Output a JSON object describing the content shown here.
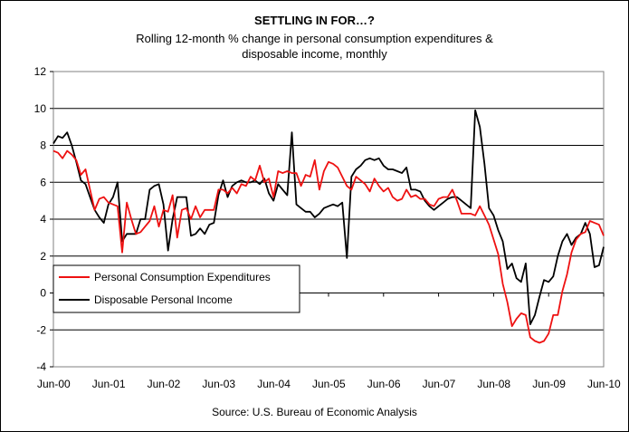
{
  "chart_data": {
    "type": "line",
    "title": "SETTLING IN FOR…?",
    "subtitle_lines": [
      "Rolling 12-month % change in personal consumption expenditures &",
      "disposable income, monthly"
    ],
    "source": "Source: U.S. Bureau of Economic Analysis",
    "xlabel": "",
    "ylabel": "",
    "ylim": [
      -4,
      12
    ],
    "yticks": [
      "12",
      "10",
      "8",
      "6",
      "4",
      "2",
      "0",
      "-2",
      "-4"
    ],
    "xlim": [
      "2000-06",
      "2010-06"
    ],
    "xtick_labels": [
      "Jun-00",
      "Jun-01",
      "Jun-02",
      "Jun-03",
      "Jun-04",
      "Jun-05",
      "Jun-06",
      "Jun-07",
      "Jun-08",
      "Jun-09",
      "Jun-10"
    ],
    "grid": "horizontal",
    "legend_position": "left-middle",
    "series": [
      {
        "name": "Personal Consumption Expenditures",
        "color": "#ee1111",
        "points": [
          [
            "2000-06",
            7.7
          ],
          [
            "2000-07",
            7.6
          ],
          [
            "2000-08",
            7.3
          ],
          [
            "2000-09",
            7.7
          ],
          [
            "2000-10",
            7.5
          ],
          [
            "2000-11",
            7.2
          ],
          [
            "2000-12",
            6.4
          ],
          [
            "2001-01",
            6.7
          ],
          [
            "2001-02",
            5.6
          ],
          [
            "2001-03",
            4.5
          ],
          [
            "2001-04",
            5.1
          ],
          [
            "2001-05",
            5.2
          ],
          [
            "2001-06",
            4.9
          ],
          [
            "2001-07",
            4.8
          ],
          [
            "2001-08",
            4.7
          ],
          [
            "2001-09",
            2.2
          ],
          [
            "2001-10",
            4.9
          ],
          [
            "2001-11",
            4.0
          ],
          [
            "2001-12",
            3.2
          ],
          [
            "2002-01",
            3.3
          ],
          [
            "2002-02",
            3.6
          ],
          [
            "2002-03",
            3.9
          ],
          [
            "2002-04",
            4.7
          ],
          [
            "2002-05",
            3.6
          ],
          [
            "2002-06",
            4.5
          ],
          [
            "2002-07",
            4.4
          ],
          [
            "2002-08",
            5.3
          ],
          [
            "2002-09",
            3.0
          ],
          [
            "2002-10",
            4.5
          ],
          [
            "2002-11",
            4.6
          ],
          [
            "2002-12",
            4.0
          ],
          [
            "2003-01",
            4.7
          ],
          [
            "2003-02",
            4.1
          ],
          [
            "2003-03",
            4.5
          ],
          [
            "2003-04",
            4.5
          ],
          [
            "2003-05",
            4.5
          ],
          [
            "2003-06",
            5.6
          ],
          [
            "2003-07",
            5.6
          ],
          [
            "2003-08",
            5.4
          ],
          [
            "2003-09",
            5.7
          ],
          [
            "2003-10",
            5.4
          ],
          [
            "2003-11",
            5.9
          ],
          [
            "2003-12",
            5.8
          ],
          [
            "2004-01",
            6.3
          ],
          [
            "2004-02",
            6.1
          ],
          [
            "2004-03",
            6.9
          ],
          [
            "2004-04",
            6.0
          ],
          [
            "2004-05",
            6.2
          ],
          [
            "2004-06",
            5.2
          ],
          [
            "2004-07",
            6.6
          ],
          [
            "2004-08",
            6.5
          ],
          [
            "2004-09",
            6.6
          ],
          [
            "2004-10",
            6.5
          ],
          [
            "2004-11",
            6.5
          ],
          [
            "2004-12",
            5.8
          ],
          [
            "2005-01",
            6.4
          ],
          [
            "2005-02",
            6.3
          ],
          [
            "2005-03",
            7.2
          ],
          [
            "2005-04",
            5.6
          ],
          [
            "2005-05",
            6.6
          ],
          [
            "2005-06",
            7.1
          ],
          [
            "2005-07",
            7.0
          ],
          [
            "2005-08",
            6.8
          ],
          [
            "2005-09",
            6.3
          ],
          [
            "2005-10",
            5.8
          ],
          [
            "2005-11",
            5.6
          ],
          [
            "2005-12",
            6.3
          ],
          [
            "2006-01",
            6.1
          ],
          [
            "2006-02",
            5.9
          ],
          [
            "2006-03",
            5.5
          ],
          [
            "2006-04",
            6.2
          ],
          [
            "2006-05",
            5.8
          ],
          [
            "2006-06",
            5.5
          ],
          [
            "2006-07",
            5.7
          ],
          [
            "2006-08",
            5.2
          ],
          [
            "2006-09",
            5.0
          ],
          [
            "2006-10",
            5.1
          ],
          [
            "2006-11",
            5.6
          ],
          [
            "2006-12",
            5.2
          ],
          [
            "2007-01",
            5.3
          ],
          [
            "2007-02",
            5.1
          ],
          [
            "2007-03",
            5.1
          ],
          [
            "2007-04",
            4.8
          ],
          [
            "2007-05",
            4.7
          ],
          [
            "2007-06",
            5.1
          ],
          [
            "2007-07",
            5.2
          ],
          [
            "2007-08",
            5.2
          ],
          [
            "2007-09",
            5.6
          ],
          [
            "2007-10",
            5.0
          ],
          [
            "2007-11",
            4.3
          ],
          [
            "2007-12",
            4.3
          ],
          [
            "2008-01",
            4.3
          ],
          [
            "2008-02",
            4.2
          ],
          [
            "2008-03",
            4.7
          ],
          [
            "2008-04",
            4.2
          ],
          [
            "2008-05",
            3.7
          ],
          [
            "2008-06",
            2.9
          ],
          [
            "2008-07",
            2.1
          ],
          [
            "2008-08",
            0.5
          ],
          [
            "2008-09",
            -0.5
          ],
          [
            "2008-10",
            -1.8
          ],
          [
            "2008-11",
            -1.4
          ],
          [
            "2008-12",
            -1.1
          ],
          [
            "2009-01",
            -1.2
          ],
          [
            "2009-02",
            -2.4
          ],
          [
            "2009-03",
            -2.6
          ],
          [
            "2009-04",
            -2.7
          ],
          [
            "2009-05",
            -2.6
          ],
          [
            "2009-06",
            -2.2
          ],
          [
            "2009-07",
            -1.2
          ],
          [
            "2009-08",
            -1.2
          ],
          [
            "2009-09",
            0.1
          ],
          [
            "2009-10",
            1.0
          ],
          [
            "2009-11",
            2.2
          ],
          [
            "2009-12",
            2.9
          ],
          [
            "2010-01",
            3.2
          ],
          [
            "2010-02",
            3.3
          ],
          [
            "2010-03",
            3.9
          ],
          [
            "2010-04",
            3.8
          ],
          [
            "2010-05",
            3.7
          ],
          [
            "2010-06",
            3.1
          ]
        ]
      },
      {
        "name": "Disposable Personal Income",
        "color": "#000000",
        "points": [
          [
            "2000-06",
            8.1
          ],
          [
            "2000-07",
            8.5
          ],
          [
            "2000-08",
            8.4
          ],
          [
            "2000-09",
            8.7
          ],
          [
            "2000-10",
            8.0
          ],
          [
            "2000-11",
            7.1
          ],
          [
            "2000-12",
            6.1
          ],
          [
            "2001-01",
            5.9
          ],
          [
            "2001-02",
            5.2
          ],
          [
            "2001-03",
            4.5
          ],
          [
            "2001-04",
            4.1
          ],
          [
            "2001-05",
            3.8
          ],
          [
            "2001-06",
            4.8
          ],
          [
            "2001-07",
            5.2
          ],
          [
            "2001-08",
            6.0
          ],
          [
            "2001-09",
            2.8
          ],
          [
            "2001-10",
            3.2
          ],
          [
            "2001-11",
            3.2
          ],
          [
            "2001-12",
            3.2
          ],
          [
            "2002-01",
            4.0
          ],
          [
            "2002-02",
            4.0
          ],
          [
            "2002-03",
            5.6
          ],
          [
            "2002-04",
            5.8
          ],
          [
            "2002-05",
            5.9
          ],
          [
            "2002-06",
            4.8
          ],
          [
            "2002-07",
            2.3
          ],
          [
            "2002-08",
            4.0
          ],
          [
            "2002-09",
            5.2
          ],
          [
            "2002-10",
            5.2
          ],
          [
            "2002-11",
            5.2
          ],
          [
            "2002-12",
            3.1
          ],
          [
            "2003-01",
            3.2
          ],
          [
            "2003-02",
            3.5
          ],
          [
            "2003-03",
            3.2
          ],
          [
            "2003-04",
            3.7
          ],
          [
            "2003-05",
            3.8
          ],
          [
            "2003-06",
            5.3
          ],
          [
            "2003-07",
            6.1
          ],
          [
            "2003-08",
            5.2
          ],
          [
            "2003-09",
            5.8
          ],
          [
            "2003-10",
            6.0
          ],
          [
            "2003-11",
            6.1
          ],
          [
            "2003-12",
            6.0
          ],
          [
            "2004-01",
            6.0
          ],
          [
            "2004-02",
            6.1
          ],
          [
            "2004-03",
            5.9
          ],
          [
            "2004-04",
            6.2
          ],
          [
            "2004-05",
            5.4
          ],
          [
            "2004-06",
            5.0
          ],
          [
            "2004-07",
            5.9
          ],
          [
            "2004-08",
            5.6
          ],
          [
            "2004-09",
            5.3
          ],
          [
            "2004-10",
            8.7
          ],
          [
            "2004-11",
            4.8
          ],
          [
            "2004-12",
            4.6
          ],
          [
            "2005-01",
            4.4
          ],
          [
            "2005-02",
            4.4
          ],
          [
            "2005-03",
            4.1
          ],
          [
            "2005-04",
            4.3
          ],
          [
            "2005-05",
            4.6
          ],
          [
            "2005-06",
            4.7
          ],
          [
            "2005-07",
            4.8
          ],
          [
            "2005-08",
            4.7
          ],
          [
            "2005-09",
            4.9
          ],
          [
            "2005-10",
            1.9
          ],
          [
            "2005-11",
            6.3
          ],
          [
            "2005-12",
            6.7
          ],
          [
            "2006-01",
            6.9
          ],
          [
            "2006-02",
            7.2
          ],
          [
            "2006-03",
            7.3
          ],
          [
            "2006-04",
            7.2
          ],
          [
            "2006-05",
            7.3
          ],
          [
            "2006-06",
            6.9
          ],
          [
            "2006-07",
            6.7
          ],
          [
            "2006-08",
            6.7
          ],
          [
            "2006-09",
            6.6
          ],
          [
            "2006-10",
            6.5
          ],
          [
            "2006-11",
            6.8
          ],
          [
            "2006-12",
            5.6
          ],
          [
            "2007-01",
            5.6
          ],
          [
            "2007-02",
            5.5
          ],
          [
            "2007-03",
            5.0
          ],
          [
            "2007-04",
            4.7
          ],
          [
            "2007-05",
            4.5
          ],
          [
            "2007-06",
            4.7
          ],
          [
            "2007-07",
            4.9
          ],
          [
            "2007-08",
            5.1
          ],
          [
            "2007-09",
            5.2
          ],
          [
            "2007-10",
            5.2
          ],
          [
            "2007-11",
            5.0
          ],
          [
            "2007-12",
            4.8
          ],
          [
            "2008-01",
            4.6
          ],
          [
            "2008-02",
            9.9
          ],
          [
            "2008-03",
            9.0
          ],
          [
            "2008-04",
            7.0
          ],
          [
            "2008-05",
            4.6
          ],
          [
            "2008-06",
            4.2
          ],
          [
            "2008-07",
            3.4
          ],
          [
            "2008-08",
            2.8
          ],
          [
            "2008-09",
            1.3
          ],
          [
            "2008-10",
            1.6
          ],
          [
            "2008-11",
            0.8
          ],
          [
            "2008-12",
            0.6
          ],
          [
            "2009-01",
            1.6
          ],
          [
            "2009-02",
            -1.7
          ],
          [
            "2009-03",
            -1.2
          ],
          [
            "2009-04",
            -0.2
          ],
          [
            "2009-05",
            0.7
          ],
          [
            "2009-06",
            0.6
          ],
          [
            "2009-07",
            0.9
          ],
          [
            "2009-08",
            2.0
          ],
          [
            "2009-09",
            2.8
          ],
          [
            "2009-10",
            3.2
          ],
          [
            "2009-11",
            2.6
          ],
          [
            "2009-12",
            3.0
          ],
          [
            "2010-01",
            3.2
          ],
          [
            "2010-02",
            3.8
          ],
          [
            "2010-03",
            3.2
          ],
          [
            "2010-04",
            1.4
          ],
          [
            "2010-05",
            1.5
          ],
          [
            "2010-06",
            2.5
          ]
        ]
      }
    ]
  }
}
